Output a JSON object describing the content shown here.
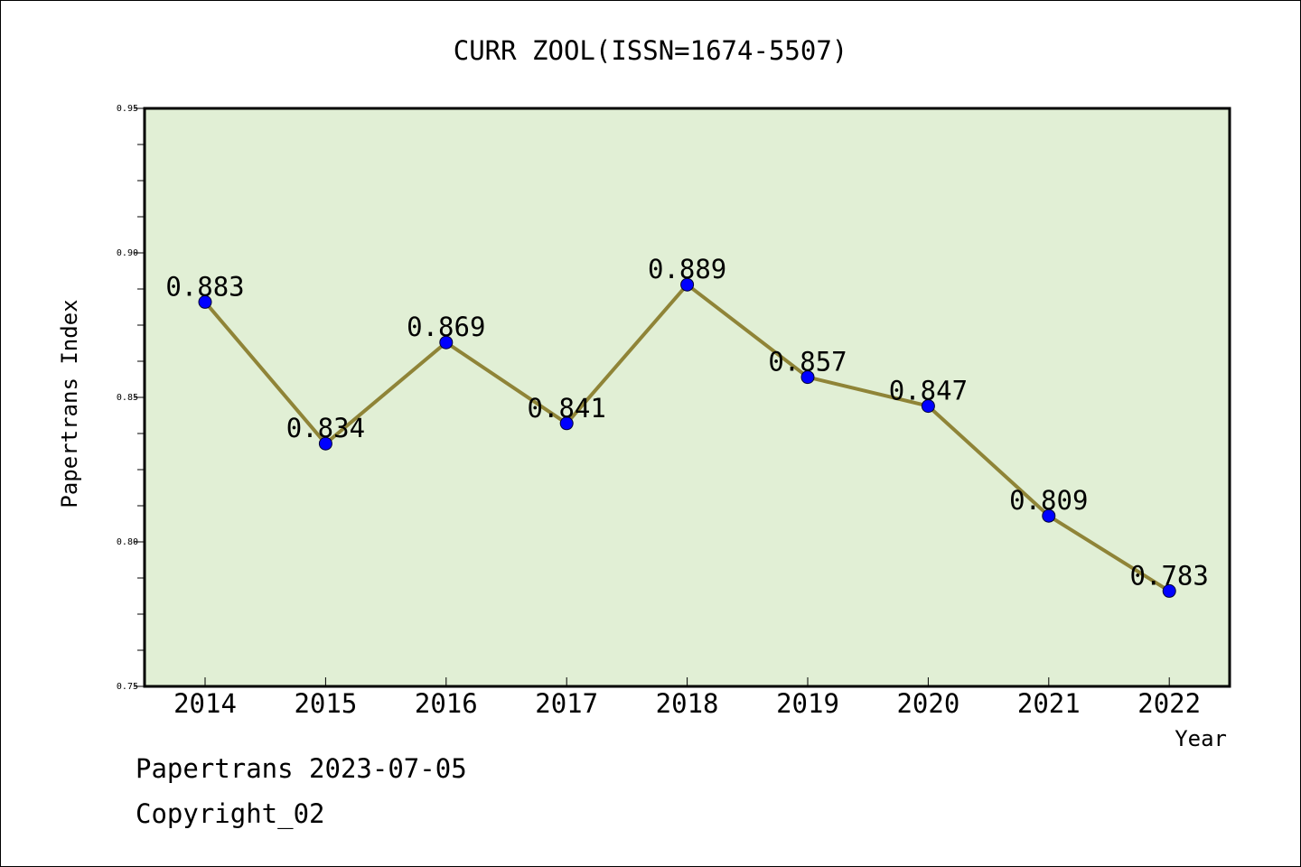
{
  "chart_data": {
    "type": "line",
    "title": "CURR ZOOL(ISSN=1674-5507)",
    "xlabel": "Year",
    "ylabel": "Papertrans Index",
    "categories": [
      "2014",
      "2015",
      "2016",
      "2017",
      "2018",
      "2019",
      "2020",
      "2021",
      "2022"
    ],
    "series": [
      {
        "values": [
          0.883,
          0.834,
          0.869,
          0.841,
          0.889,
          0.857,
          0.847,
          0.809,
          0.783
        ],
        "labels": [
          "0.883",
          "0.834",
          "0.869",
          "0.841",
          "0.889",
          "0.857",
          "0.847",
          "0.809",
          "0.783"
        ]
      }
    ],
    "ylim": [
      0.75,
      0.95
    ],
    "yticks": [
      "0.75",
      "0.80",
      "0.85",
      "0.90",
      "0.95"
    ],
    "grid": false,
    "colors": {
      "plot_bg": "#e1efd5",
      "line": "#8f8437",
      "marker": "#0000ff"
    }
  },
  "footer": {
    "line1": "Papertrans 2023-07-05",
    "line2": "Copyright_02"
  }
}
